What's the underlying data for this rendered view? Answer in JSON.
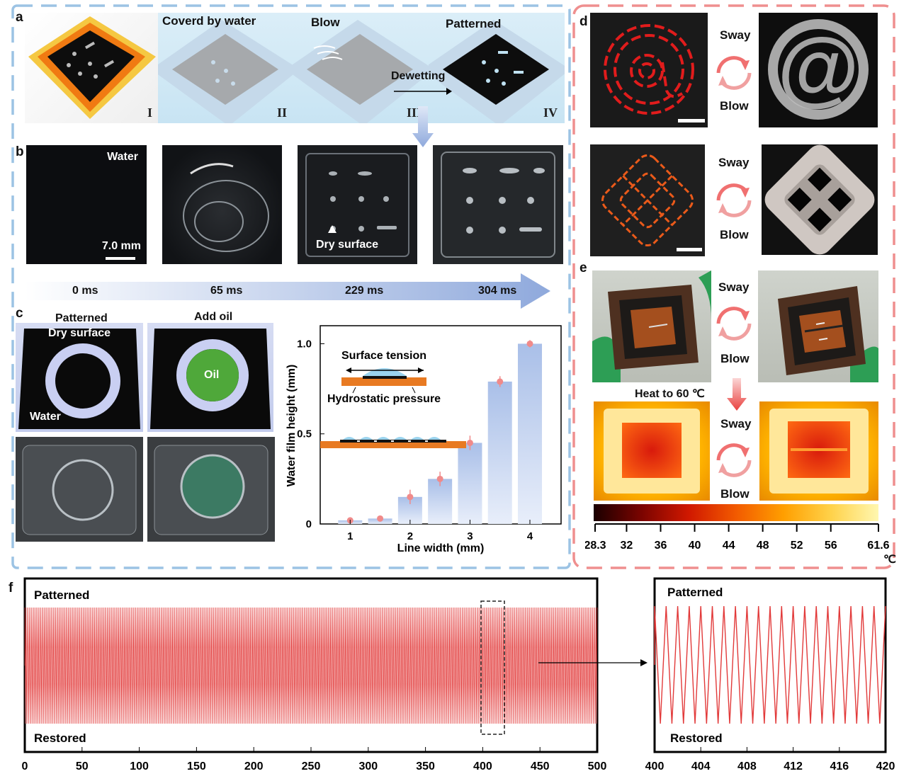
{
  "panels": {
    "a": "a",
    "b": "b",
    "c": "c",
    "d": "d",
    "e": "e",
    "f": "f"
  },
  "a": {
    "cover": "Coverd by water",
    "blow": "Blow",
    "patterned": "Patterned",
    "dewetting": "Dewetting",
    "roman": [
      "I",
      "II",
      "III",
      "IV"
    ]
  },
  "b": {
    "water": "Water",
    "scale": "7.0 mm",
    "dry": "Dry surface",
    "times": [
      "0 ms",
      "65 ms",
      "229 ms",
      "304 ms"
    ]
  },
  "c": {
    "patterned": "Patterned",
    "add_oil": "Add oil",
    "dry_surface": "Dry surface",
    "oil": "Oil",
    "water": "Water",
    "surface_tension": "Surface tension",
    "hydrostatic": "Hydrostatic pressure"
  },
  "d": {
    "sway": "Sway",
    "blow": "Blow"
  },
  "e": {
    "sway": "Sway",
    "blow": "Blow",
    "heat": "Heat to 60 ℃",
    "scale_ticks": [
      "28.3",
      "32",
      "36",
      "40",
      "44",
      "48",
      "52",
      "56",
      "61.6"
    ],
    "unit": "℃"
  },
  "f": {
    "patterned": "Patterned",
    "restored": "Restored"
  },
  "colors": {
    "blue_dash": "#9cc3e4",
    "red_dash": "#ef8f8f",
    "cycle_red": "#e23a3a",
    "bar": "#a9bfe8",
    "point": "#f08a8a"
  },
  "chart_data": [
    {
      "type": "bar",
      "xlabel": "Line width (mm)",
      "ylabel": "Water film height (mm)",
      "x": [
        1,
        1.5,
        2,
        2.5,
        3,
        3.5,
        4
      ],
      "values": [
        0.02,
        0.03,
        0.15,
        0.25,
        0.45,
        0.79,
        1.0
      ],
      "errors": [
        0.005,
        0.01,
        0.04,
        0.04,
        0.04,
        0.03,
        0.02
      ],
      "xticks": [
        "1",
        "2",
        "3",
        "4"
      ],
      "yticks": [
        "0",
        "0.5",
        "1.0"
      ],
      "ylim": [
        0,
        1.1
      ]
    },
    {
      "type": "line",
      "xlabel": "",
      "ylabel": "",
      "xticks": [
        "0",
        "50",
        "100",
        "150",
        "200",
        "250",
        "300",
        "350",
        "400",
        "450",
        "500"
      ],
      "xlim": [
        0,
        500
      ],
      "cycles": 500,
      "states": [
        "Patterned",
        "Restored"
      ]
    },
    {
      "type": "line",
      "xticks": [
        "400",
        "404",
        "408",
        "412",
        "416",
        "420"
      ],
      "xlim": [
        400,
        420
      ],
      "cycles": 20,
      "states": [
        "Patterned",
        "Restored"
      ]
    }
  ]
}
